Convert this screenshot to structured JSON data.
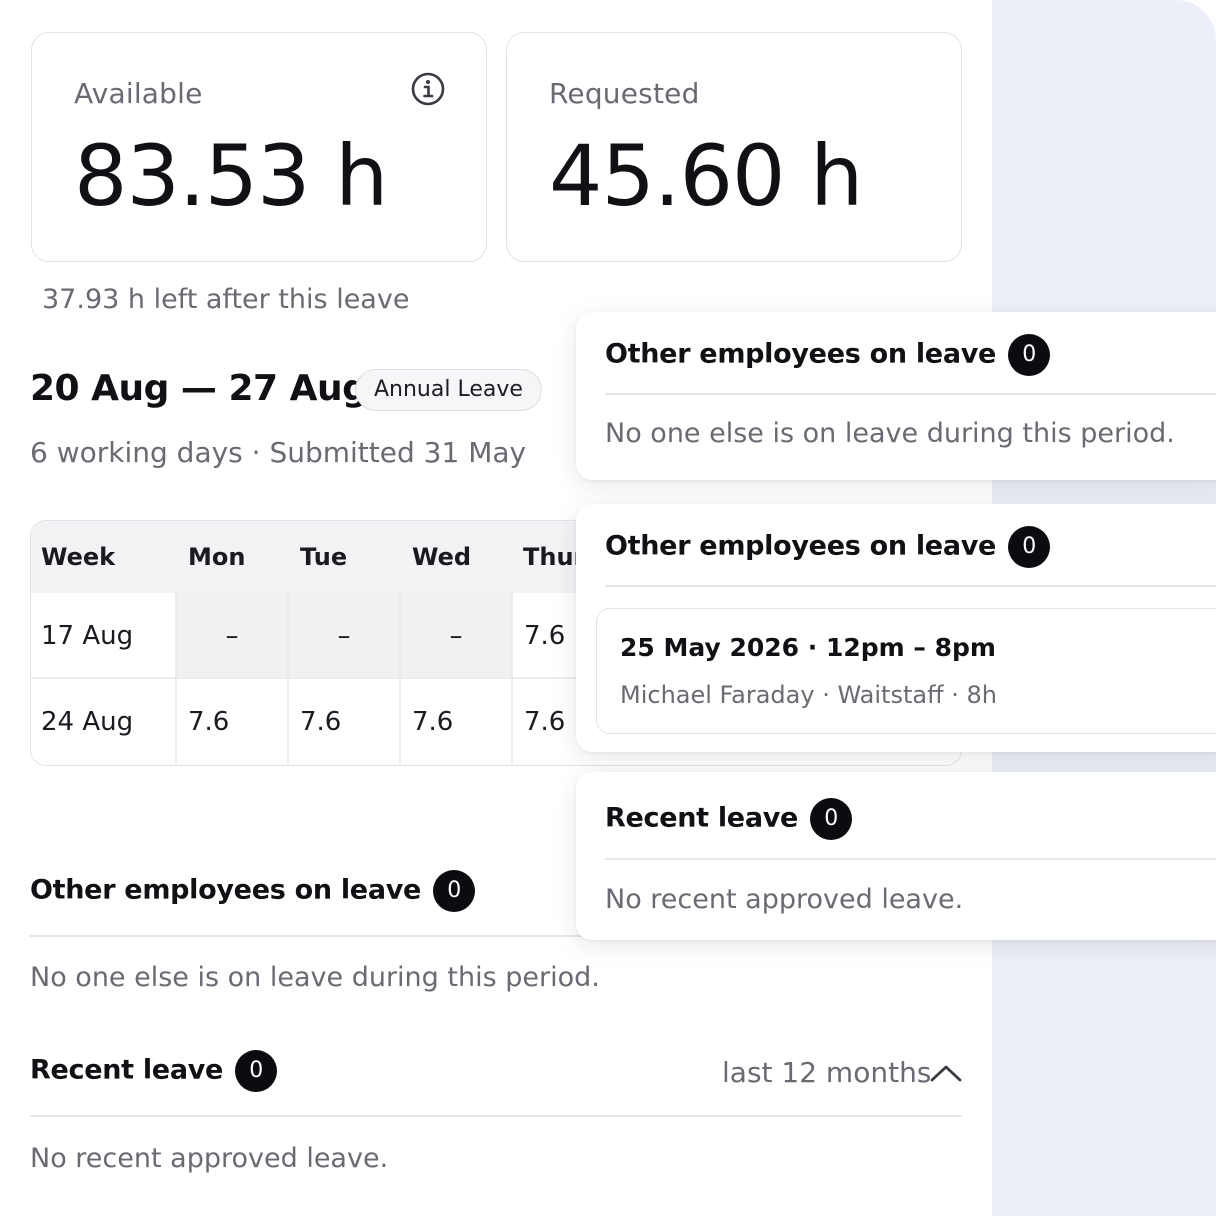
{
  "balance": {
    "available_label": "Available",
    "available_value": "83.53 h",
    "requested_label": "Requested",
    "requested_value": "45.60 h",
    "left_after": "37.93 h left after this leave"
  },
  "request": {
    "date_range": "20 Aug — 27 Aug",
    "leave_type": "Annual Leave",
    "meta": "6 working days · Submitted 31 May"
  },
  "week_table": {
    "headers": [
      "Week",
      "Mon",
      "Tue",
      "Wed",
      "Thur"
    ],
    "rows": [
      {
        "week": "17 Aug",
        "mon": "–",
        "tue": "–",
        "wed": "–",
        "thu": "7.6"
      },
      {
        "week": "24 Aug",
        "mon": "7.6",
        "tue": "7.6",
        "wed": "7.6",
        "thu": "7.6"
      }
    ]
  },
  "other_employees": {
    "title": "Other employees on leave",
    "count": "0",
    "empty": "No one else is on leave during this period."
  },
  "recent_leave": {
    "title": "Recent leave",
    "count": "0",
    "filter": "last 12 months",
    "empty": "No recent approved leave."
  },
  "overlay_other_empty": {
    "title": "Other employees on leave",
    "count": "0",
    "empty": "No one else is on leave during this period."
  },
  "overlay_other_shift": {
    "title": "Other employees on leave",
    "count": "0",
    "shift_when": "25 May 2026 · 12pm – 8pm",
    "shift_who": "Michael Faraday · Waitstaff · 8h"
  },
  "overlay_recent": {
    "title": "Recent leave",
    "count": "0",
    "empty": "No recent approved leave."
  },
  "icons": [
    "info-icon",
    "chevron-up-icon"
  ],
  "colors": {
    "badge": "#0b0b10",
    "side_panel": "#eceff7",
    "muted_text": "#6a6b72"
  }
}
